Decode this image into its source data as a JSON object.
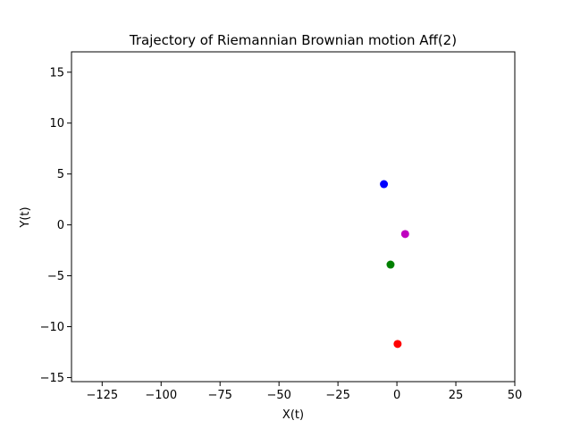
{
  "chart_data": {
    "type": "scatter",
    "title": "Trajectory of Riemannian Brownian motion Aff(2)",
    "xlabel": "X(t)",
    "ylabel": "Y(t)",
    "xlim": [
      -138,
      50
    ],
    "ylim": [
      -15.4,
      17
    ],
    "xticks": [
      -125,
      -100,
      -75,
      -50,
      -25,
      0,
      25,
      50
    ],
    "yticks": [
      -15,
      -10,
      -5,
      0,
      5,
      10,
      15
    ],
    "xtick_labels": [
      "−125",
      "−100",
      "−75",
      "−50",
      "−25",
      "0",
      "25",
      "50"
    ],
    "ytick_labels": [
      "−15",
      "−10",
      "−5",
      "0",
      "5",
      "10",
      "15"
    ],
    "grid": false,
    "points": [
      {
        "x": -5.5,
        "y": 4.0,
        "color": "#0000ff"
      },
      {
        "x": 3.5,
        "y": -0.9,
        "color": "#bf00bf"
      },
      {
        "x": -2.7,
        "y": -3.9,
        "color": "#008000"
      },
      {
        "x": 0.3,
        "y": -11.7,
        "color": "#ff0000"
      }
    ]
  }
}
